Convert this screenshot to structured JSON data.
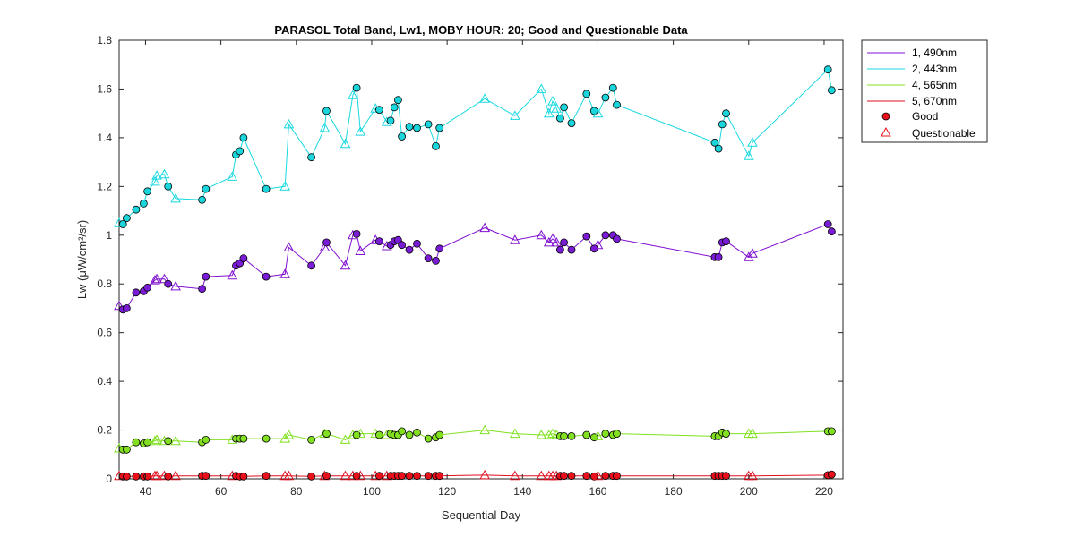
{
  "chart_data": {
    "type": "line",
    "title": "PARASOL Total Band,  Lw1, MOBY HOUR: 20;  Good and Questionable Data",
    "xlabel": "Sequential Day",
    "ylabel": "Lw (μW/cm²/sr)",
    "xlim": [
      33,
      225
    ],
    "ylim": [
      0,
      1.8
    ],
    "xticks": [
      40,
      60,
      80,
      100,
      120,
      140,
      160,
      180,
      200,
      220
    ],
    "yticks": [
      0,
      0.2,
      0.4,
      0.6,
      0.8,
      1,
      1.2,
      1.4,
      1.6,
      1.8
    ],
    "ytick_labels": [
      "0",
      "0.2",
      "0.4",
      "0.6",
      "0.8",
      "1",
      "1.2",
      "1.4",
      "1.6",
      "1.8"
    ],
    "grid": false,
    "legend_position": "outside-top-right",
    "legend": {
      "series_entries": [
        "1, 490nm",
        "2, 443nm",
        "4, 565nm",
        "5, 670nm"
      ],
      "good_label": "Good",
      "questionable_label": "Questionable",
      "good_color": "#e8101a",
      "questionable_color": "#e8101a"
    },
    "x": [
      33,
      34,
      35,
      37.5,
      39.5,
      40.5,
      42.5,
      43,
      45,
      46,
      48,
      55,
      56,
      63,
      64,
      65,
      66,
      72,
      77,
      78,
      84,
      87.5,
      88,
      93,
      95,
      96,
      97,
      101,
      102,
      104,
      105,
      106,
      107,
      108,
      110,
      112,
      115,
      117,
      118,
      130,
      138,
      145,
      147,
      148,
      149,
      150,
      151,
      153,
      157,
      159,
      160,
      162,
      164,
      165,
      191,
      192,
      193,
      194,
      200,
      201,
      221,
      222
    ],
    "q": [
      1,
      0,
      0,
      0,
      0,
      0,
      1,
      1,
      1,
      0,
      1,
      0,
      0,
      1,
      0,
      0,
      0,
      0,
      1,
      1,
      0,
      1,
      0,
      1,
      1,
      0,
      1,
      1,
      0,
      1,
      0,
      0,
      0,
      0,
      0,
      0,
      0,
      0,
      0,
      1,
      1,
      1,
      1,
      1,
      1,
      0,
      0,
      0,
      0,
      0,
      1,
      0,
      0,
      0,
      0,
      0,
      0,
      0,
      1,
      1,
      0,
      0
    ],
    "series": [
      {
        "name": "1, 490nm",
        "color": "#8010d0",
        "marker_fill": "#7a1cd6",
        "values": [
          0.71,
          0.695,
          0.7,
          0.765,
          0.77,
          0.785,
          0.815,
          0.82,
          0.82,
          0.8,
          0.79,
          0.78,
          0.83,
          0.835,
          0.875,
          0.885,
          0.905,
          0.83,
          0.84,
          0.95,
          0.875,
          0.95,
          0.97,
          0.875,
          1.0,
          1.005,
          0.935,
          0.98,
          0.975,
          0.955,
          0.96,
          0.975,
          0.98,
          0.96,
          0.94,
          0.965,
          0.905,
          0.895,
          0.945,
          1.03,
          0.98,
          1.0,
          0.97,
          0.985,
          0.97,
          0.94,
          0.97,
          0.94,
          0.995,
          0.945,
          0.96,
          1.0,
          1.0,
          0.985,
          0.91,
          0.91,
          0.97,
          0.975,
          0.91,
          0.925,
          1.045,
          1.015
        ]
      },
      {
        "name": "2, 443nm",
        "color": "#18d8e0",
        "marker_fill": "#1ad6dc",
        "values": [
          1.05,
          1.045,
          1.07,
          1.105,
          1.13,
          1.18,
          1.22,
          1.245,
          1.25,
          1.2,
          1.15,
          1.145,
          1.19,
          1.24,
          1.33,
          1.345,
          1.4,
          1.19,
          1.2,
          1.455,
          1.32,
          1.44,
          1.51,
          1.375,
          1.575,
          1.605,
          1.425,
          1.52,
          1.515,
          1.465,
          1.47,
          1.525,
          1.555,
          1.405,
          1.445,
          1.44,
          1.455,
          1.365,
          1.44,
          1.56,
          1.49,
          1.6,
          1.5,
          1.55,
          1.52,
          1.48,
          1.525,
          1.46,
          1.58,
          1.51,
          1.5,
          1.565,
          1.605,
          1.535,
          1.38,
          1.355,
          1.455,
          1.5,
          1.325,
          1.38,
          1.68,
          1.595
        ]
      },
      {
        "name": "4, 565nm",
        "color": "#80e020",
        "marker_fill": "#82e020",
        "values": [
          0.125,
          0.12,
          0.12,
          0.15,
          0.145,
          0.15,
          0.155,
          0.16,
          0.155,
          0.155,
          0.155,
          0.15,
          0.16,
          0.16,
          0.165,
          0.165,
          0.165,
          0.165,
          0.165,
          0.18,
          0.16,
          0.185,
          0.185,
          0.16,
          0.18,
          0.18,
          0.185,
          0.185,
          0.18,
          0.18,
          0.185,
          0.18,
          0.18,
          0.195,
          0.18,
          0.19,
          0.165,
          0.17,
          0.18,
          0.2,
          0.185,
          0.18,
          0.18,
          0.185,
          0.18,
          0.175,
          0.175,
          0.175,
          0.18,
          0.17,
          0.175,
          0.185,
          0.18,
          0.185,
          0.175,
          0.175,
          0.19,
          0.185,
          0.185,
          0.185,
          0.195,
          0.195
        ]
      },
      {
        "name": "5, 670nm",
        "color": "#e01020",
        "marker_fill": "#e8101a",
        "values": [
          0.012,
          0.01,
          0.01,
          0.01,
          0.01,
          0.01,
          0.012,
          0.012,
          0.012,
          0.01,
          0.012,
          0.012,
          0.012,
          0.012,
          0.012,
          0.01,
          0.01,
          0.012,
          0.012,
          0.012,
          0.01,
          0.012,
          0.012,
          0.012,
          0.012,
          0.012,
          0.012,
          0.012,
          0.012,
          0.012,
          0.012,
          0.012,
          0.012,
          0.012,
          0.012,
          0.012,
          0.012,
          0.012,
          0.012,
          0.015,
          0.012,
          0.012,
          0.012,
          0.012,
          0.012,
          0.012,
          0.012,
          0.012,
          0.012,
          0.01,
          0.012,
          0.012,
          0.012,
          0.012,
          0.012,
          0.012,
          0.012,
          0.012,
          0.012,
          0.012,
          0.015,
          0.018
        ]
      }
    ]
  }
}
